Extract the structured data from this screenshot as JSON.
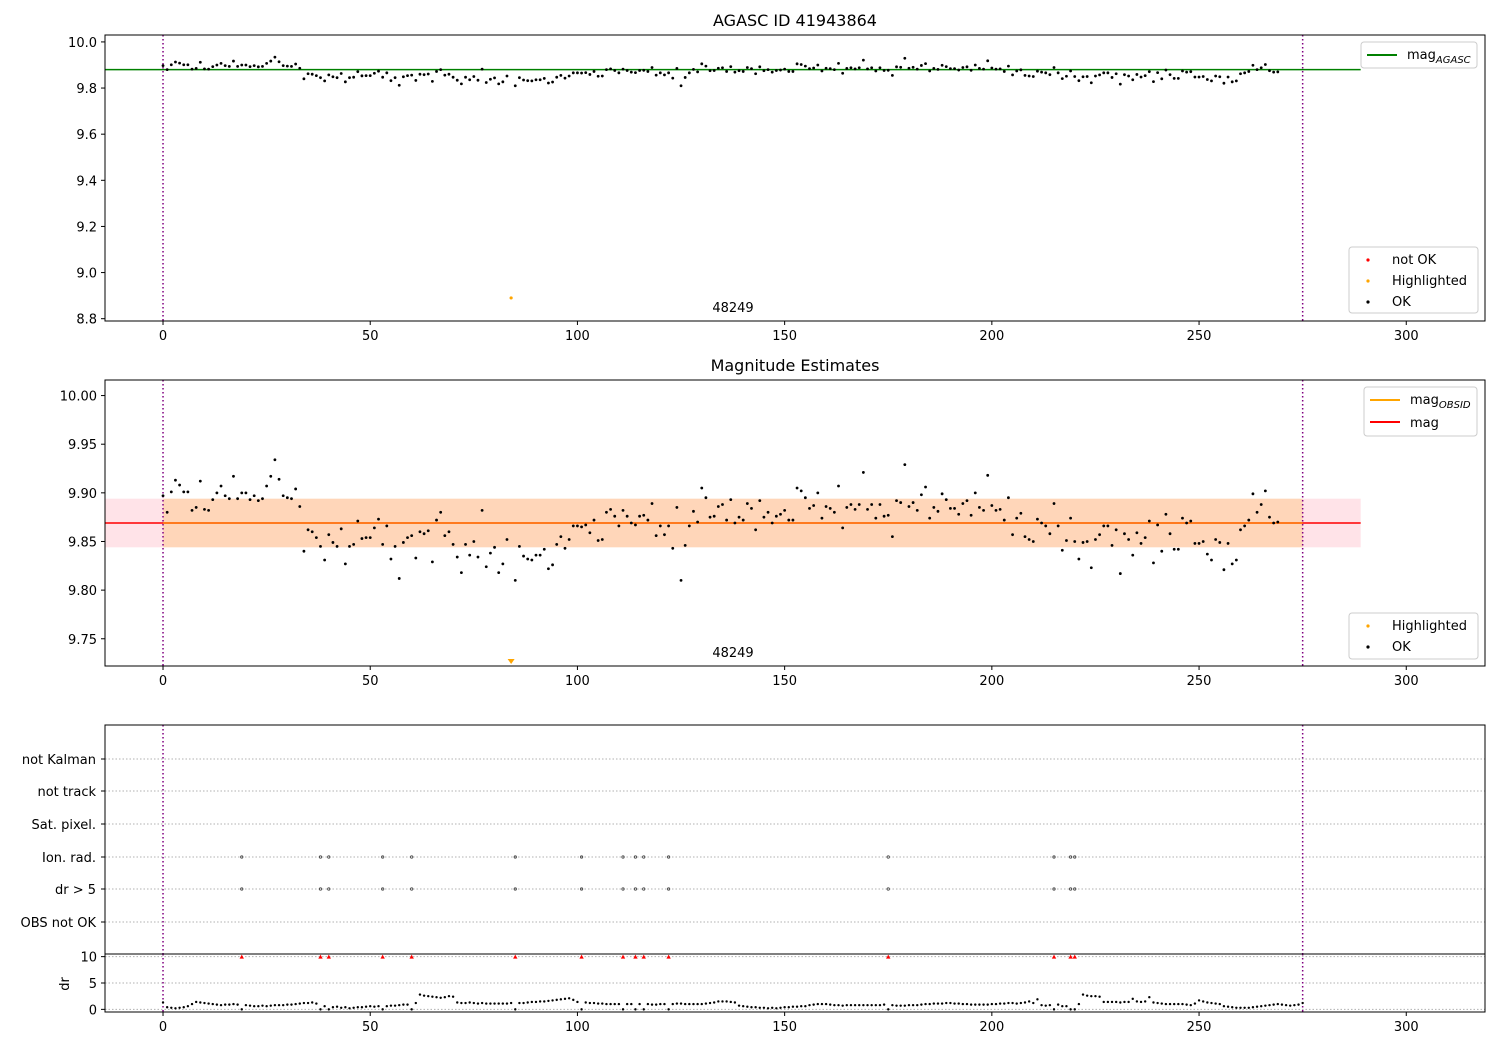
{
  "colors": {
    "ok": "#000000",
    "not_ok": "#ff0000",
    "highlighted": "#ffa500",
    "mag_agasc": "#008000",
    "mag_obsid": "#ffa500",
    "mag": "#ff0000",
    "band_outer": "#ffc0cb",
    "band_inner": "#ffa500",
    "obs_boundary": "#800080"
  },
  "chart_data": [
    {
      "type": "scatter",
      "title": "AGASC ID 41943864",
      "xlim": [
        -14,
        319
      ],
      "ylim": [
        8.79,
        10.03
      ],
      "yticks": [
        "8.8",
        "9.0",
        "9.2",
        "9.4",
        "9.6",
        "9.8",
        "10.0"
      ],
      "xticks": [
        "0",
        "50",
        "100",
        "150",
        "200",
        "250",
        "300"
      ],
      "grid": false,
      "legend_upper": {
        "placement": "top-right",
        "entries": [
          "mag_AGASC"
        ]
      },
      "legend_lower": {
        "placement": "bottom-right",
        "entries": [
          "not OK",
          "Highlighted",
          "OK"
        ]
      },
      "annotation": "48249",
      "obs_boundaries": [
        0,
        275
      ],
      "mag_agasc": 9.88,
      "highlighted": [
        {
          "x": 84,
          "y": 8.89
        }
      ],
      "series": [
        {
          "name": "OK",
          "points_from": "magnitudes"
        }
      ]
    },
    {
      "type": "scatter",
      "title": "Magnitude Estimates",
      "xlim": [
        -14,
        319
      ],
      "ylim": [
        9.722,
        10.016
      ],
      "yticks": [
        "9.75",
        "9.80",
        "9.85",
        "9.90",
        "9.95",
        "10.00"
      ],
      "xticks": [
        "0",
        "50",
        "100",
        "150",
        "200",
        "250",
        "300"
      ],
      "grid": false,
      "legend_upper": {
        "placement": "top-right",
        "entries": [
          "mag_OBSID",
          "mag"
        ]
      },
      "legend_lower": {
        "placement": "bottom-right",
        "entries": [
          "Highlighted",
          "OK"
        ]
      },
      "annotation": "48249",
      "obs_boundaries": [
        0,
        275
      ],
      "mag": 9.869,
      "band_outer": [
        9.844,
        9.894
      ],
      "band_inner": [
        9.844,
        9.894
      ],
      "series": [
        {
          "name": "OK",
          "points_from": "magnitudes"
        }
      ]
    },
    {
      "type": "scatter",
      "title": "",
      "categories": [
        "not Kalman",
        "not track",
        "Sat. pixel.",
        "Ion. rad.",
        "dr > 5",
        "OBS not OK"
      ],
      "xlim": [
        -14,
        319
      ],
      "flag_times": {
        "Ion. rad.": [
          19,
          38,
          40,
          53,
          60,
          85,
          101,
          111,
          114,
          116,
          122,
          175,
          215,
          219,
          220
        ],
        "dr > 5": [
          19,
          38,
          40,
          53,
          60,
          85,
          101,
          111,
          114,
          116,
          122,
          175,
          215,
          219,
          220
        ]
      },
      "obs_boundaries": [
        0,
        275
      ]
    },
    {
      "type": "scatter",
      "title": "",
      "ylabel": "dr",
      "xlim": [
        -14,
        319
      ],
      "ylim": [
        -0.5,
        10.5
      ],
      "yticks": [
        "0",
        "5",
        "10"
      ],
      "xticks": [
        "0",
        "50",
        "100",
        "150",
        "200",
        "250",
        "300"
      ],
      "clipped_at_10": [
        19,
        38,
        40,
        53,
        60,
        85,
        101,
        111,
        114,
        116,
        122,
        175,
        215,
        219,
        220
      ],
      "dr": [
        1.3,
        0.4,
        0.3,
        0.2,
        0.3,
        0.4,
        0.6,
        1.0,
        1.4,
        1.3,
        1.2,
        1.1,
        1.0,
        0.9,
        0.8,
        0.9,
        0.9,
        1.0,
        0.9,
        0.0,
        0.8,
        0.7,
        0.6,
        0.6,
        0.7,
        0.6,
        0.7,
        0.8,
        0.8,
        0.8,
        0.9,
        0.9,
        1.0,
        1.1,
        1.2,
        1.2,
        1.3,
        1.1,
        0.0,
        0.6,
        0.0,
        0.4,
        0.5,
        0.3,
        0.4,
        0.2,
        0.3,
        0.4,
        0.4,
        0.5,
        0.6,
        0.5,
        0.6,
        0.0,
        0.6,
        0.7,
        0.7,
        0.8,
        0.9,
        0.9,
        0.0,
        1.2,
        2.8,
        2.6,
        2.5,
        2.4,
        2.3,
        2.2,
        2.3,
        2.5,
        2.4,
        1.3,
        1.2,
        1.2,
        1.3,
        1.2,
        1.1,
        1.2,
        1.1,
        1.1,
        1.1,
        1.1,
        1.1,
        1.1,
        1.2,
        0.0,
        1.2,
        1.2,
        1.3,
        1.4,
        1.4,
        1.5,
        1.5,
        1.6,
        1.7,
        1.8,
        1.9,
        2.0,
        2.1,
        1.8,
        1.4,
        0.0,
        1.3,
        1.2,
        1.2,
        1.1,
        1.1,
        1.0,
        1.0,
        1.0,
        1.0,
        0.0,
        1.0,
        1.0,
        0.0,
        1.0,
        0.0,
        1.0,
        0.9,
        0.9,
        1.0,
        1.0,
        0.0,
        1.0,
        1.1,
        1.1,
        1.0,
        1.0,
        1.0,
        1.0,
        1.0,
        1.1,
        1.2,
        1.3,
        1.5,
        1.5,
        1.5,
        1.4,
        1.3,
        0.7,
        0.6,
        0.5,
        0.4,
        0.4,
        0.3,
        0.3,
        0.2,
        0.3,
        0.2,
        0.3,
        0.4,
        0.4,
        0.5,
        0.5,
        0.6,
        0.6,
        0.8,
        0.9,
        1.0,
        1.0,
        1.0,
        0.9,
        0.8,
        0.8,
        0.7,
        0.8,
        0.8,
        0.8,
        0.8,
        0.8,
        0.8,
        0.8,
        0.8,
        0.8,
        0.9,
        0.0,
        0.8,
        0.7,
        0.7,
        0.7,
        0.8,
        0.8,
        0.8,
        0.9,
        1.0,
        1.0,
        1.1,
        1.1,
        1.1,
        1.2,
        1.2,
        1.1,
        1.1,
        1.0,
        1.0,
        0.9,
        0.9,
        0.9,
        0.9,
        0.9,
        1.0,
        1.0,
        1.1,
        1.1,
        1.2,
        1.2,
        1.1,
        1.2,
        1.3,
        1.5,
        1.2,
        1.9,
        0.8,
        0.7,
        0.8,
        0.0,
        0.9,
        0.6,
        0.6,
        0.0,
        0.0,
        1.0,
        2.8,
        2.6,
        2.5,
        2.5,
        2.4,
        1.4,
        1.4,
        1.4,
        1.4,
        1.3,
        1.4,
        1.4,
        2.0,
        1.5,
        1.4,
        1.5,
        2.3,
        1.3,
        1.2,
        1.1,
        1.0,
        1.0,
        1.0,
        1.0,
        1.0,
        0.9,
        0.8,
        1.1,
        1.7,
        1.5,
        1.3,
        1.2,
        1.1,
        1.0,
        0.6,
        0.5,
        0.4,
        0.3,
        0.3,
        0.3,
        0.3,
        0.4,
        0.5,
        0.6,
        0.7,
        0.8,
        0.9,
        1.0,
        0.9,
        0.8,
        0.7,
        0.8,
        0.9,
        1.2
      ]
    }
  ],
  "magnitudes": [
    9.897,
    9.88,
    9.901,
    9.913,
    9.908,
    9.901,
    9.901,
    9.882,
    9.885,
    9.912,
    9.883,
    9.882,
    9.893,
    9.9,
    9.907,
    9.897,
    9.894,
    9.917,
    9.894,
    9.9,
    9.9,
    9.893,
    9.897,
    9.892,
    9.894,
    9.907,
    9.917,
    9.934,
    9.914,
    9.897,
    9.895,
    9.894,
    9.904,
    9.886,
    9.84,
    9.862,
    9.86,
    9.854,
    9.845,
    9.831,
    9.857,
    9.849,
    9.845,
    9.863,
    9.827,
    9.845,
    9.847,
    9.871,
    9.853,
    9.854,
    9.854,
    9.864,
    9.873,
    9.847,
    9.866,
    9.832,
    9.845,
    9.812,
    9.849,
    9.854,
    9.856,
    9.833,
    9.86,
    9.858,
    9.861,
    9.829,
    9.872,
    9.88,
    9.856,
    9.86,
    9.847,
    9.834,
    9.818,
    9.847,
    9.836,
    9.85,
    9.834,
    9.882,
    9.824,
    9.838,
    9.844,
    9.818,
    9.827,
    9.852,
    9.742,
    9.81,
    9.845,
    9.835,
    9.832,
    9.831,
    9.836,
    9.836,
    9.842,
    9.822,
    9.826,
    9.847,
    9.855,
    9.843,
    9.852,
    9.866,
    9.866,
    9.865,
    9.867,
    9.859,
    9.872,
    9.851,
    9.852,
    9.88,
    9.883,
    9.876,
    9.866,
    9.882,
    9.876,
    9.869,
    9.867,
    9.876,
    9.877,
    9.872,
    9.889,
    9.856,
    9.866,
    9.857,
    9.866,
    9.843,
    9.885,
    9.81,
    9.846,
    9.866,
    9.881,
    9.87,
    9.905,
    9.895,
    9.875,
    9.876,
    9.886,
    9.888,
    9.872,
    9.893,
    9.869,
    9.875,
    9.872,
    9.889,
    9.884,
    9.862,
    9.892,
    9.875,
    9.88,
    9.869,
    9.876,
    9.878,
    9.882,
    9.872,
    9.872,
    9.905,
    9.902,
    9.895,
    9.884,
    9.887,
    9.9,
    9.874,
    9.886,
    9.884,
    9.88,
    9.907,
    9.864,
    9.885,
    9.888,
    9.883,
    9.888,
    9.921,
    9.883,
    9.888,
    9.874,
    9.888,
    9.876,
    9.877,
    9.855,
    9.892,
    9.89,
    9.929,
    9.886,
    9.89,
    9.882,
    9.898,
    9.906,
    9.874,
    9.885,
    9.881,
    9.899,
    9.893,
    9.884,
    9.884,
    9.878,
    9.889,
    9.892,
    9.877,
    9.9,
    9.885,
    9.882,
    9.918,
    9.887,
    9.882,
    9.883,
    9.872,
    9.895,
    9.857,
    9.874,
    9.879,
    9.855,
    9.852,
    9.85,
    9.873,
    9.869,
    9.866,
    9.858,
    9.889,
    9.866,
    9.841,
    9.851,
    9.874,
    9.85,
    9.832,
    9.849,
    9.85,
    9.823,
    9.852,
    9.857,
    9.866,
    9.866,
    9.846,
    9.862,
    9.817,
    9.858,
    9.852,
    9.836,
    9.859,
    9.848,
    9.854,
    9.871,
    9.828,
    9.867,
    9.84,
    9.878,
    9.858,
    9.842,
    9.842,
    9.874,
    9.869,
    9.871,
    9.848,
    9.848,
    9.85,
    9.837,
    9.831,
    9.852,
    9.849,
    9.821,
    9.848,
    9.827,
    9.831,
    9.862,
    9.866,
    9.872,
    9.899,
    9.88,
    9.888,
    9.902,
    9.875,
    9.869,
    9.87
  ],
  "labels": {
    "plot1_title": "AGASC ID 41943864",
    "plot2_title": "Magnitude Estimates",
    "annotation": "48249",
    "legend_mag_agasc": "mag",
    "legend_mag_agasc_sub": "AGASC",
    "legend_mag_obsid": "mag",
    "legend_mag_obsid_sub": "OBSID",
    "legend_mag": "mag",
    "legend_not_ok": "not OK",
    "legend_highlighted": "Highlighted",
    "legend_ok": "OK",
    "dr_ylabel": "dr"
  }
}
